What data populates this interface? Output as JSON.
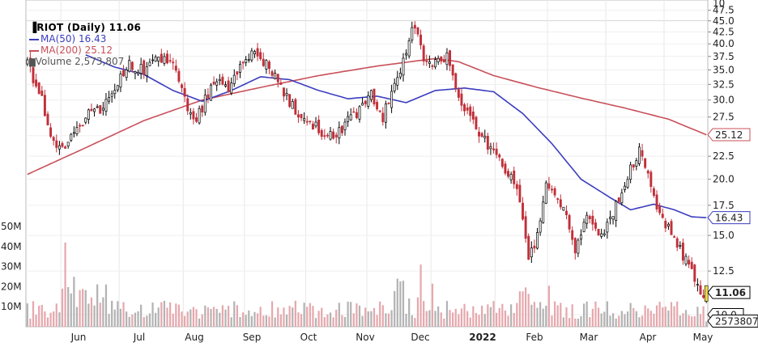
{
  "chart_data": {
    "type": "candlestick",
    "title": "RIOT (Daily) 11.06",
    "ticker": "RIOT",
    "interval": "Daily",
    "last_price": "11.06",
    "legend": [
      {
        "name": "MA(50)",
        "value": "16.43",
        "color": "#3b3dbe"
      },
      {
        "name": "MA(200)",
        "value": "25.12",
        "color": "#c8505a"
      },
      {
        "name": "Volume",
        "value": "2,573,807",
        "color": "#808080"
      }
    ],
    "x_labels": [
      "Jun",
      "Jul",
      "Aug",
      "Sep",
      "Oct",
      "Nov",
      "Dec",
      "2022",
      "Feb",
      "Mar",
      "Apr",
      "May"
    ],
    "price_axis": {
      "scale": "log",
      "ticks": [
        "10",
        "12.5",
        "15.0",
        "17.5",
        "20.0",
        "22.5",
        "25.0",
        "27.5",
        "30.0",
        "32.5",
        "35.0",
        "37.5",
        "40.0",
        "42.5",
        "45.0",
        "47.5"
      ],
      "top_pane_tick": "10"
    },
    "volume_axis": {
      "ticks": [
        "10M",
        "20M",
        "30M",
        "40M",
        "50M"
      ]
    },
    "price_tags": [
      {
        "label": "25.12",
        "value": 25.12,
        "color": "#c8505a"
      },
      {
        "label": "16.43",
        "value": 16.43,
        "color": "#3b3dbe"
      },
      {
        "label": "11.06",
        "value": 11.06,
        "color": "#000000"
      },
      {
        "label": "10.0",
        "value": 10.0,
        "color": "#000000"
      },
      {
        "label": "2573807",
        "value": 2573807,
        "color": "#000000"
      }
    ],
    "price_path_anchors": [
      [
        0,
        36.5
      ],
      [
        5,
        30
      ],
      [
        10,
        23
      ],
      [
        15,
        24.5
      ],
      [
        20,
        27.5
      ],
      [
        25,
        28.5
      ],
      [
        30,
        32
      ],
      [
        35,
        36
      ],
      [
        40,
        35
      ],
      [
        45,
        37.5
      ],
      [
        50,
        35.5
      ],
      [
        55,
        29
      ],
      [
        58,
        27
      ],
      [
        62,
        31
      ],
      [
        66,
        33
      ],
      [
        70,
        32
      ],
      [
        74,
        36.5
      ],
      [
        78,
        38
      ],
      [
        83,
        36
      ],
      [
        88,
        31
      ],
      [
        93,
        28
      ],
      [
        98,
        26.5
      ],
      [
        103,
        25
      ],
      [
        108,
        26
      ],
      [
        113,
        28
      ],
      [
        118,
        31
      ],
      [
        122,
        27.5
      ],
      [
        126,
        32
      ],
      [
        130,
        39
      ],
      [
        133,
        44
      ],
      [
        136,
        37
      ],
      [
        140,
        36
      ],
      [
        144,
        37.5
      ],
      [
        148,
        30
      ],
      [
        152,
        27
      ],
      [
        156,
        25
      ],
      [
        160,
        23
      ],
      [
        164,
        21
      ],
      [
        168,
        19
      ],
      [
        172,
        13.5
      ],
      [
        175,
        15
      ],
      [
        178,
        19.5
      ],
      [
        181,
        19
      ],
      [
        184,
        17
      ],
      [
        188,
        14
      ],
      [
        192,
        16.5
      ],
      [
        196,
        15
      ],
      [
        200,
        16
      ],
      [
        204,
        19
      ],
      [
        207,
        21
      ],
      [
        210,
        23.5
      ],
      [
        213,
        21
      ],
      [
        216,
        17.5
      ],
      [
        220,
        15.5
      ],
      [
        224,
        14
      ],
      [
        228,
        12.5
      ],
      [
        231,
        11.2
      ],
      [
        233,
        11.06
      ]
    ],
    "ma50_anchors": [
      [
        20,
        37.8
      ],
      [
        30,
        35.5
      ],
      [
        40,
        34.2
      ],
      [
        50,
        31.5
      ],
      [
        60,
        29.8
      ],
      [
        70,
        31.5
      ],
      [
        80,
        33.8
      ],
      [
        90,
        33.3
      ],
      [
        100,
        31.5
      ],
      [
        110,
        30.2
      ],
      [
        120,
        30.6
      ],
      [
        130,
        29.6
      ],
      [
        140,
        31.5
      ],
      [
        150,
        31.9
      ],
      [
        160,
        31.3
      ],
      [
        170,
        28
      ],
      [
        180,
        24
      ],
      [
        190,
        20
      ],
      [
        200,
        18.2
      ],
      [
        207,
        17.1
      ],
      [
        215,
        17.6
      ],
      [
        222,
        17.1
      ],
      [
        228,
        16.5
      ],
      [
        233,
        16.43
      ]
    ],
    "ma200_anchors": [
      [
        0,
        20.5
      ],
      [
        20,
        23.5
      ],
      [
        40,
        27
      ],
      [
        60,
        30
      ],
      [
        80,
        32
      ],
      [
        100,
        34
      ],
      [
        120,
        35.7
      ],
      [
        130,
        36.4
      ],
      [
        140,
        37.1
      ],
      [
        148,
        36.5
      ],
      [
        160,
        34
      ],
      [
        175,
        32
      ],
      [
        190,
        30.3
      ],
      [
        205,
        28.8
      ],
      [
        220,
        27.2
      ],
      [
        233,
        25.12
      ]
    ],
    "volume_scale_max": 50000000
  }
}
